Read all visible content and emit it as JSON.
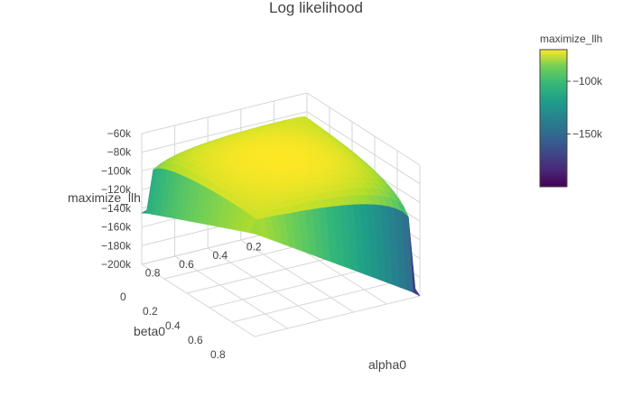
{
  "chart_data": {
    "type": "surface",
    "title": "Log likelihood",
    "x_axis": {
      "label": "alpha0",
      "ticks": [
        0,
        0.2,
        0.4,
        0.6,
        0.8
      ],
      "tick_labels": [
        "0",
        "0.2",
        "0.4",
        "0.6",
        "0.8"
      ],
      "range": [
        0,
        1
      ]
    },
    "y_axis": {
      "label": "beta0",
      "ticks": [
        0.2,
        0.4,
        0.6,
        0.8
      ],
      "tick_labels": [
        "0.2",
        "0.4",
        "0.6",
        "0.8"
      ],
      "range": [
        0,
        1
      ]
    },
    "z_axis": {
      "label": "maximize_llh",
      "ticks": [
        -60000,
        -80000,
        -100000,
        -120000,
        -140000,
        -160000,
        -180000,
        -200000
      ],
      "tick_labels": [
        "−60k",
        "−80k",
        "−100k",
        "−120k",
        "−140k",
        "−160k",
        "−180k",
        "−200k"
      ],
      "range": [
        -200000,
        -60000
      ]
    },
    "colorbar": {
      "title": "maximize_llh",
      "ticks": [
        -100000,
        -150000
      ],
      "tick_labels": [
        "−100k",
        "−150k"
      ],
      "range": [
        -200000,
        -70000
      ],
      "colorscale": "viridis"
    },
    "surface": {
      "peak_z": -70000,
      "corner_values": {
        "alpha_high_beta_low": -200000,
        "alpha_low_beta_high": -145000,
        "alpha_low_beta_low": -90000,
        "alpha_high_beta_high": -90000
      }
    },
    "grid": true
  }
}
